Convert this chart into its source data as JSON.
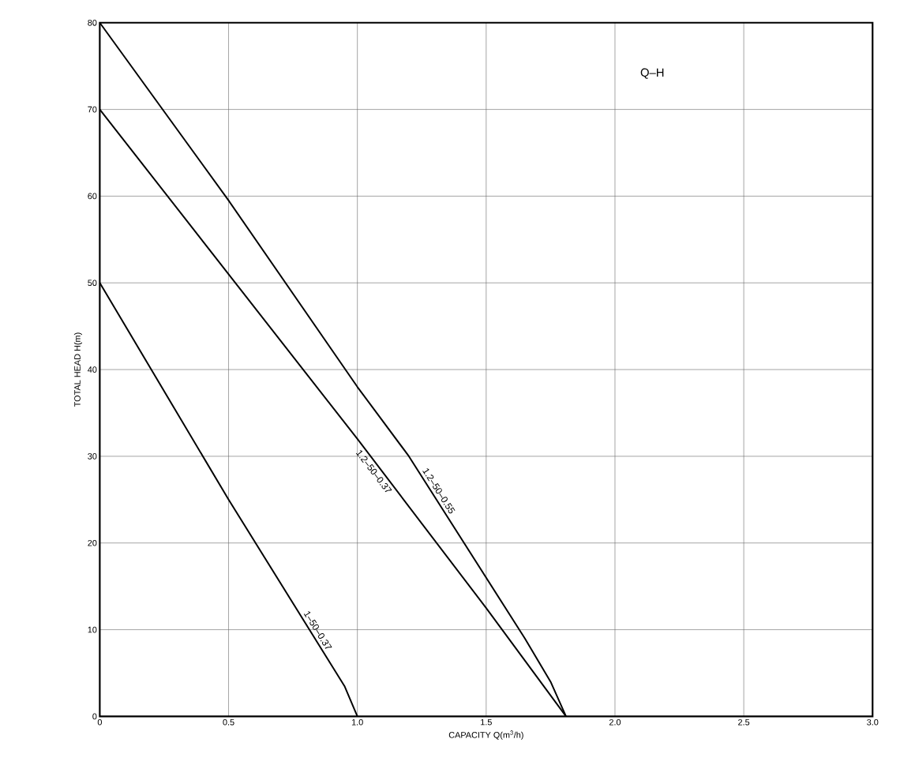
{
  "chart_data": {
    "type": "line",
    "title": "Q–H",
    "xlabel": "CAPACITY Q(m$^{3}$/h)",
    "ylabel": "TOTAL HEAD H(m)",
    "series": [
      {
        "name": "1–50–0.37",
        "color": "#000000",
        "x": [
          0,
          0.5,
          0.95,
          1.0
        ],
        "values": [
          50,
          25,
          3.5,
          0
        ]
      },
      {
        "name": "1.2–50–0.37",
        "color": "#000000",
        "x": [
          0,
          0.5,
          1.0,
          1.5,
          1.81
        ],
        "values": [
          70,
          51,
          32,
          12.5,
          0
        ]
      },
      {
        "name": "1.2–50–0.55",
        "color": "#000000",
        "x": [
          0,
          0.5,
          1.0,
          1.2,
          1.5,
          1.65,
          1.75,
          1.81
        ],
        "values": [
          80,
          59.5,
          38,
          30,
          16,
          9,
          4,
          0
        ]
      }
    ],
    "xlim": [
      0,
      3
    ],
    "ylim": [
      0,
      80
    ],
    "xticks": [
      0,
      {
        "value": 0.5,
        "label": "0.5"
      },
      {
        "value": 1,
        "label": "1.0"
      },
      {
        "value": 1.5,
        "label": "1.5"
      },
      {
        "value": 2,
        "label": "2.0"
      },
      {
        "value": 2.5,
        "label": "2.5"
      },
      {
        "value": 3,
        "label": "3.0"
      }
    ],
    "yticks": [
      0,
      10,
      20,
      30,
      40,
      50,
      60,
      70,
      80
    ],
    "grid": true
  }
}
